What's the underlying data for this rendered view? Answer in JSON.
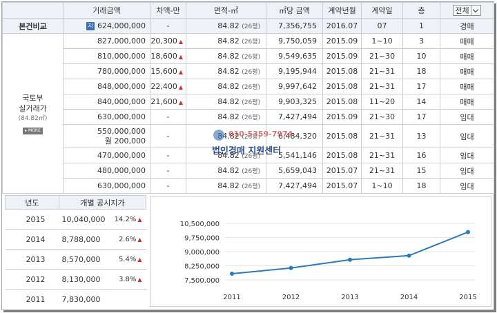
{
  "header": {
    "amount": "거래금액",
    "diff": "차액-만",
    "area": "면적-㎡",
    "per_sqm": "㎡당 금액",
    "contract_ym": "계약년월",
    "contract_day": "계약일",
    "floor": "층",
    "filter": "전체"
  },
  "subject": {
    "label": "본건비교",
    "badge": "지",
    "amount": "624,000,000",
    "diff": "-",
    "area": "84.82",
    "pyeong": "(26평)",
    "per_sqm": "7,356,755",
    "contract_ym": "2016.07",
    "contract_day": "07",
    "floor": "1",
    "type": "경매"
  },
  "gov": {
    "label_line1": "국토부",
    "label_line2": "실거래가",
    "area": "(84.82㎡)",
    "more": "MORE"
  },
  "rows": [
    {
      "amount": "827,000,000",
      "diff": "20,300",
      "up": "▲",
      "area": "84.82",
      "pyeong": "(26평)",
      "per_sqm": "9,750,059",
      "ym": "2015.09",
      "day": "1~10",
      "floor": "3",
      "type": "매매"
    },
    {
      "amount": "810,000,000",
      "diff": "18,600",
      "up": "▲",
      "area": "84.82",
      "pyeong": "(26평)",
      "per_sqm": "9,549,635",
      "ym": "2015.09",
      "day": "21~30",
      "floor": "10",
      "type": "매매"
    },
    {
      "amount": "780,000,000",
      "diff": "15,600",
      "up": "▲",
      "area": "84.82",
      "pyeong": "(26평)",
      "per_sqm": "9,195,944",
      "ym": "2015.08",
      "day": "21~31",
      "floor": "18",
      "type": "매매"
    },
    {
      "amount": "848,000,000",
      "diff": "22,400",
      "up": "▲",
      "area": "84.82",
      "pyeong": "(26평)",
      "per_sqm": "9,997,642",
      "ym": "2015.08",
      "day": "21~31",
      "floor": "17",
      "type": "매매"
    },
    {
      "amount": "840,000,000",
      "diff": "21,600",
      "up": "▲",
      "area": "84.82",
      "pyeong": "(26평)",
      "per_sqm": "9,903,325",
      "ym": "2015.08",
      "day": "11~20",
      "floor": "14",
      "type": "매매"
    },
    {
      "amount": "630,000,000",
      "diff": "-",
      "up": "",
      "area": "84.82",
      "pyeong": "(26평)",
      "per_sqm": "7,427,494",
      "ym": "2015.09",
      "day": "21~30",
      "floor": "17",
      "type": "임대"
    }
  ],
  "row_monthly": {
    "amount": "550,000,000",
    "monthly": "월 200,000",
    "diff": "-",
    "area": "84.82",
    "pyeong": "(26평)",
    "per_sqm": "6,484,320",
    "ym": "2015.08",
    "day": "21~31",
    "floor": "13",
    "type": "임대"
  },
  "rows2": [
    {
      "amount": "470,000,000",
      "diff": "-",
      "area": "84.82",
      "pyeong": "(26평)",
      "per_sqm": "5,541,146",
      "ym": "2015.08",
      "day": "21~31",
      "floor": "16",
      "type": "임대"
    },
    {
      "amount": "480,000,000",
      "diff": "-",
      "area": "84.82",
      "pyeong": "(26평)",
      "per_sqm": "5,659,043",
      "ym": "2015.07",
      "day": "21~31",
      "floor": "15",
      "type": "임대"
    },
    {
      "amount": "630,000,000",
      "diff": "-",
      "area": "84.82",
      "pyeong": "(26평)",
      "per_sqm": "7,427,494",
      "ym": "2015.07",
      "day": "1~10",
      "floor": "18",
      "type": "임대"
    }
  ],
  "watermark": {
    "phone": "010-5359-7974",
    "name": "법인경매 지원센터"
  },
  "land_price": {
    "col_year": "년도",
    "col_price": "개별 공시지가",
    "rows": [
      {
        "year": "2015",
        "price": "10,040,000",
        "pct": "14.2%",
        "up": "▲"
      },
      {
        "year": "2014",
        "price": "8,788,000",
        "pct": "2.6%",
        "up": "▲"
      },
      {
        "year": "2013",
        "price": "8,570,000",
        "pct": "5.4%",
        "up": "▲"
      },
      {
        "year": "2012",
        "price": "8,130,000",
        "pct": "3.8%",
        "up": "▲"
      },
      {
        "year": "2011",
        "price": "7,830,000",
        "pct": "",
        "up": ""
      }
    ]
  },
  "chart_data": {
    "type": "line",
    "x": [
      "2011",
      "2012",
      "2013",
      "2014",
      "2015"
    ],
    "series": [
      {
        "values": [
          7830000,
          8130000,
          8570000,
          8788000,
          10040000
        ]
      }
    ],
    "yticks": [
      "10,500,000",
      "9,750,000",
      "9,000,000",
      "8,250,000",
      "7,500,000"
    ],
    "ylim": [
      7500000,
      10500000
    ],
    "grid": true,
    "line_color": "#2a7bb8"
  }
}
